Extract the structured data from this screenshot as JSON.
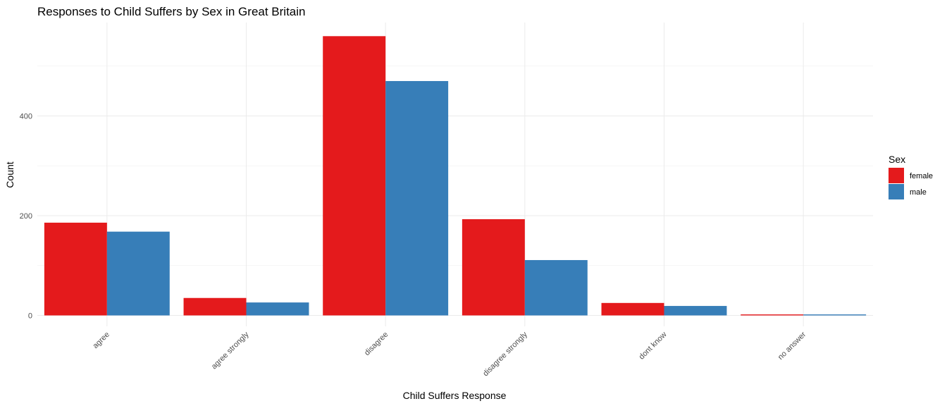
{
  "chart_data": {
    "type": "bar",
    "title": "Responses to Child Suffers by Sex in Great Britain",
    "xlabel": "Child Suffers Response",
    "ylabel": "Count",
    "categories": [
      "agree",
      "agree strongly",
      "disagree",
      "disagree strongly",
      "dont know",
      "no answer"
    ],
    "series": [
      {
        "name": "female",
        "color": "#e41a1c",
        "values": [
          186,
          35,
          560,
          193,
          25,
          2
        ]
      },
      {
        "name": "male",
        "color": "#377eb8",
        "values": [
          168,
          26,
          470,
          111,
          19,
          2
        ]
      }
    ],
    "y_ticks": [
      0,
      200,
      400
    ],
    "ylim": [
      0,
      580
    ],
    "grid": true,
    "legend": {
      "title": "Sex",
      "position": "right"
    }
  }
}
